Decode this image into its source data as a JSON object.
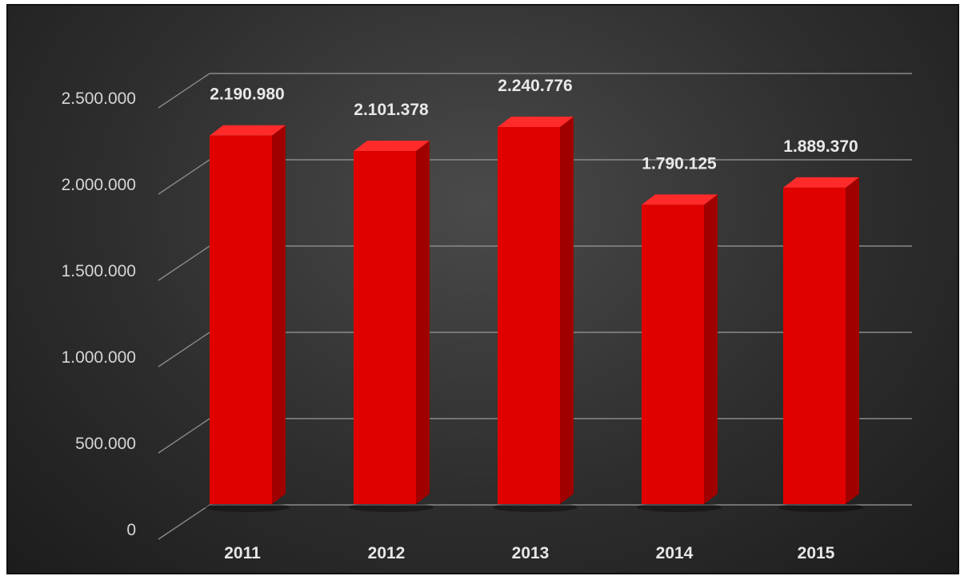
{
  "chart_data": {
    "type": "bar",
    "style": "3d-column",
    "categories": [
      "2011",
      "2012",
      "2013",
      "2014",
      "2015"
    ],
    "values": [
      2190980,
      2101378,
      2240776,
      1790125,
      1889370
    ],
    "data_labels": [
      "2.190.980",
      "2.101.378",
      "2.240.776",
      "1.790.125",
      "1.889.370"
    ],
    "y_ticks": [
      0,
      500000,
      1000000,
      1500000,
      2000000,
      2500000
    ],
    "y_tick_labels": [
      "0",
      "500.000",
      "1.000.000",
      "1.500.000",
      "2.000.000",
      "2.500.000"
    ],
    "ylim": [
      0,
      2500000
    ],
    "title": "",
    "xlabel": "",
    "ylabel": "",
    "grid": true,
    "legend": "none",
    "colors": {
      "background": "#333333",
      "bar_front": "#e00000",
      "bar_side": "#a00000",
      "bar_top": "#ff2a2a",
      "gridline": "#8a8a8a",
      "text": "#e8e8e8"
    }
  }
}
